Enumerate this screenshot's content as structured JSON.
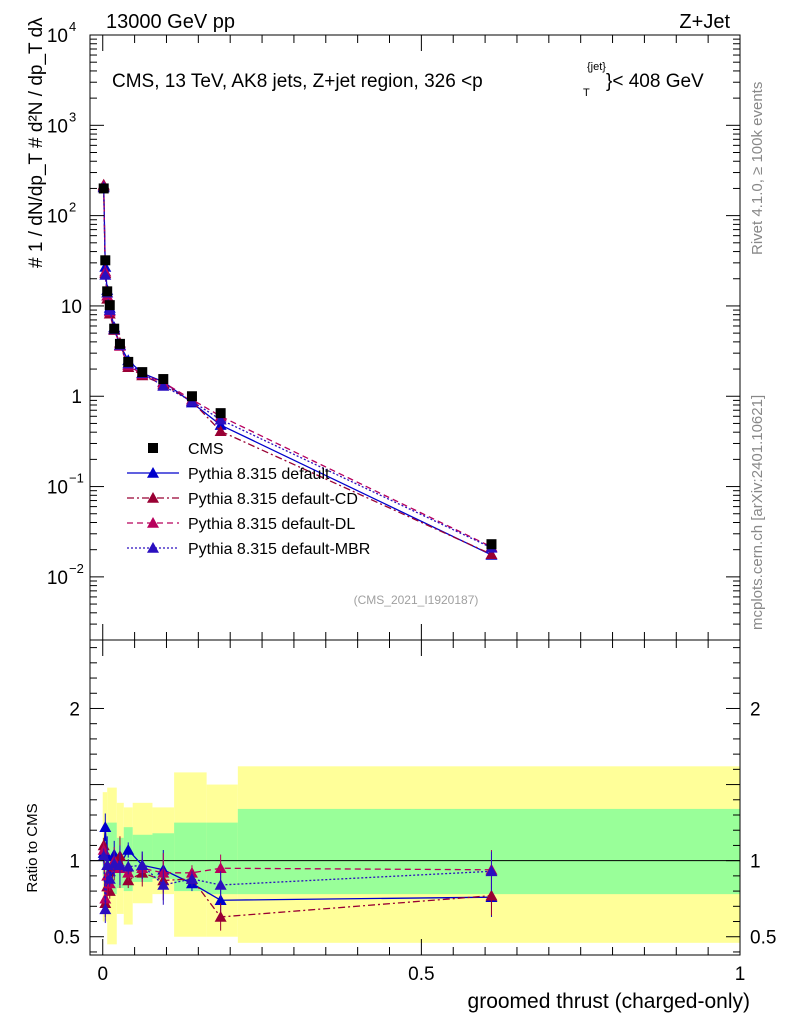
{
  "header": {
    "energy_label": "13000 GeV pp",
    "process_label": "Z+Jet",
    "side_top": "Rivet 4.1.0, ≥ 100k events",
    "side_bottom": "mcplots.cern.ch [arXiv:2401.10621]",
    "analysis_id": "(CMS_2021_I1920187)",
    "plot_title": "CMS, 13 TeV, AK8 jets, Z+jet region, 326 <p",
    "plot_title_sup": "{jet}",
    "plot_title_sub": "T",
    "plot_title_end": "}< 408 GeV",
    "ylabel_main": "#  1 / dN/dp_T  # d²N / dp_T dλ",
    "ylabel_ratio": "Ratio to CMS",
    "xlabel": "groomed thrust (charged-only)"
  },
  "chart_data": {
    "type": "line",
    "xlabel": "groomed thrust (charged-only)",
    "ylabel": "1/(dN/dp_T) d²N/(dp_T dλ)",
    "ratio_ylabel": "Ratio to CMS",
    "xlim": [
      -0.02,
      1.0
    ],
    "ylim_log": [
      0.002,
      10000
    ],
    "ratio_ylim": [
      0.38,
      2.45
    ],
    "x_ticks": [
      "0",
      "0.5",
      "1"
    ],
    "y_ticks": [
      "10^-2",
      "10^-1",
      "1",
      "10",
      "10^2",
      "10^3",
      "10^4"
    ],
    "ratio_ticks": [
      "0.5",
      "1",
      "2"
    ],
    "legend": [
      "CMS",
      "Pythia 8.315 default",
      "Pythia 8.315 default-CD",
      "Pythia 8.315 default-DL",
      "Pythia 8.315 default-MBR"
    ],
    "x": [
      0.0015,
      0.004,
      0.007,
      0.011,
      0.018,
      0.027,
      0.04,
      0.062,
      0.095,
      0.14,
      0.185,
      0.61
    ],
    "series": [
      {
        "name": "CMS",
        "color": "#000000",
        "style": "markers",
        "values": [
          200,
          32,
          14.5,
          10.2,
          5.6,
          3.8,
          2.4,
          1.85,
          1.55,
          1.0,
          0.65,
          0.023
        ]
      },
      {
        "name": "Pythia 8.315 default",
        "color": "#0000cc",
        "style": "solid",
        "values": [
          210,
          27,
          15,
          9.5,
          5.8,
          3.7,
          2.5,
          1.8,
          1.45,
          0.85,
          0.48,
          0.0175
        ]
      },
      {
        "name": "Pythia 8.315 default-CD",
        "color": "#990033",
        "style": "dashdot",
        "values": [
          220,
          23,
          12,
          8.2,
          5.4,
          3.9,
          2.1,
          1.7,
          1.35,
          0.88,
          0.41,
          0.0178
        ]
      },
      {
        "name": "Pythia 8.315 default-DL",
        "color": "#b8005c",
        "style": "dashed",
        "values": [
          215,
          24,
          13,
          8.7,
          5.6,
          3.6,
          2.2,
          1.75,
          1.42,
          0.92,
          0.6,
          0.0215
        ]
      },
      {
        "name": "Pythia 8.315 default-MBR",
        "color": "#2a0fbf",
        "style": "dotted",
        "values": [
          205,
          22,
          14,
          9.0,
          5.5,
          3.7,
          2.3,
          1.8,
          1.3,
          0.88,
          0.55,
          0.021
        ]
      }
    ],
    "ratio_series": [
      {
        "name": "Pythia 8.315 default",
        "values": [
          1.05,
          1.22,
          1.03,
          0.93,
          1.04,
          0.97,
          1.07,
          0.97,
          0.94,
          0.85,
          0.74,
          0.76
        ]
      },
      {
        "name": "Pythia 8.315 default-CD",
        "values": [
          1.1,
          0.72,
          0.83,
          0.8,
          0.96,
          1.03,
          0.87,
          0.92,
          0.87,
          0.88,
          0.63,
          0.77
        ]
      },
      {
        "name": "Pythia 8.315 default-DL",
        "values": [
          1.07,
          0.75,
          0.9,
          0.85,
          1.0,
          0.95,
          0.92,
          0.95,
          0.92,
          0.92,
          0.95,
          0.94
        ]
      },
      {
        "name": "Pythia 8.315 default-MBR",
        "values": [
          1.03,
          0.68,
          0.97,
          0.88,
          0.98,
          0.97,
          0.96,
          0.97,
          0.84,
          0.88,
          0.84,
          0.93
        ]
      }
    ],
    "ratio_band_yellow": [
      {
        "x0": 0.0,
        "x1": 0.007,
        "lo": 0.6,
        "hi": 1.45
      },
      {
        "x0": 0.007,
        "x1": 0.022,
        "lo": 0.45,
        "hi": 1.48
      },
      {
        "x0": 0.022,
        "x1": 0.033,
        "lo": 0.65,
        "hi": 1.38
      },
      {
        "x0": 0.033,
        "x1": 0.047,
        "lo": 0.58,
        "hi": 1.35
      },
      {
        "x0": 0.047,
        "x1": 0.078,
        "lo": 0.72,
        "hi": 1.38
      },
      {
        "x0": 0.078,
        "x1": 0.112,
        "lo": 0.78,
        "hi": 1.35
      },
      {
        "x0": 0.112,
        "x1": 0.163,
        "lo": 0.5,
        "hi": 1.58
      },
      {
        "x0": 0.163,
        "x1": 0.212,
        "lo": 0.5,
        "hi": 1.5
      },
      {
        "x0": 0.212,
        "x1": 1.0,
        "lo": 0.46,
        "hi": 1.62
      }
    ],
    "ratio_band_green": [
      {
        "x0": 0.0,
        "x1": 0.007,
        "lo": 0.9,
        "hi": 1.15
      },
      {
        "x0": 0.007,
        "x1": 0.022,
        "lo": 0.78,
        "hi": 1.25
      },
      {
        "x0": 0.022,
        "x1": 0.033,
        "lo": 0.82,
        "hi": 1.15
      },
      {
        "x0": 0.033,
        "x1": 0.047,
        "lo": 0.8,
        "hi": 1.22
      },
      {
        "x0": 0.047,
        "x1": 0.078,
        "lo": 0.86,
        "hi": 1.17
      },
      {
        "x0": 0.078,
        "x1": 0.112,
        "lo": 0.88,
        "hi": 1.18
      },
      {
        "x0": 0.112,
        "x1": 0.163,
        "lo": 0.8,
        "hi": 1.25
      },
      {
        "x0": 0.163,
        "x1": 0.212,
        "lo": 0.78,
        "hi": 1.25
      },
      {
        "x0": 0.212,
        "x1": 1.0,
        "lo": 0.78,
        "hi": 1.34
      }
    ]
  }
}
